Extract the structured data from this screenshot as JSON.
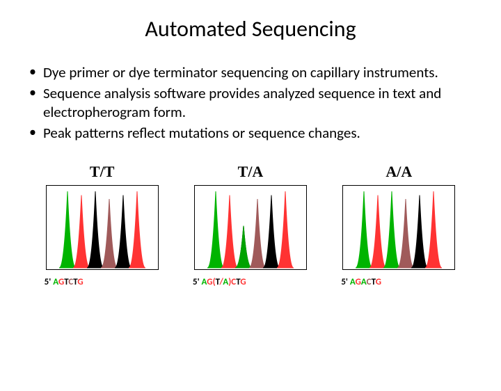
{
  "title": "Automated Sequencing",
  "bullets": [
    "Dye primer or dye terminator sequencing on capillary instruments.",
    "Sequence analysis software provides analyzed sequence in text and electropherogram form.",
    "Peak patterns reflect mutations or sequence changes."
  ],
  "colors": {
    "A": "#00b400",
    "G": "#ff3333",
    "T": "#000000",
    "C": "#a05a5a"
  },
  "peak_shape": {
    "width": 24,
    "height": 110,
    "baseline": 118,
    "overlap": 4
  },
  "charts": [
    {
      "label": "T/T",
      "peaks": [
        {
          "base": "A",
          "h": 1.0
        },
        {
          "base": "G",
          "h": 0.95
        },
        {
          "base": "T",
          "h": 1.0
        },
        {
          "base": "C",
          "h": 0.9
        },
        {
          "base": "T",
          "h": 0.95
        },
        {
          "base": "G",
          "h": 1.0
        }
      ],
      "seq_prefix": "5'",
      "seq": [
        {
          "t": " A",
          "c": "#00b400"
        },
        {
          "t": "G",
          "c": "#ff3333"
        },
        {
          "t": "T",
          "c": "#000000"
        },
        {
          "t": "C",
          "c": "#a05a5a"
        },
        {
          "t": "T",
          "c": "#000000"
        },
        {
          "t": "G",
          "c": "#ff3333"
        }
      ]
    },
    {
      "label": "T/A",
      "peaks": [
        {
          "base": "A",
          "h": 1.0
        },
        {
          "base": "G",
          "h": 0.95
        },
        {
          "base": "T",
          "h": 0.55,
          "overlay": {
            "base": "A",
            "h": 0.55
          }
        },
        {
          "base": "C",
          "h": 0.9
        },
        {
          "base": "T",
          "h": 0.95
        },
        {
          "base": "G",
          "h": 1.0
        }
      ],
      "seq_prefix": "5'",
      "seq": [
        {
          "t": " A",
          "c": "#00b400"
        },
        {
          "t": "G(",
          "c": "#ff3333"
        },
        {
          "t": "T",
          "c": "#000000"
        },
        {
          "t": "/",
          "c": "#ff3333"
        },
        {
          "t": "A",
          "c": "#00b400"
        },
        {
          "t": ")C",
          "c": "#ff3333"
        },
        {
          "t": "T",
          "c": "#000000"
        },
        {
          "t": "G",
          "c": "#ff3333"
        }
      ]
    },
    {
      "label": "A/A",
      "peaks": [
        {
          "base": "A",
          "h": 1.0
        },
        {
          "base": "G",
          "h": 0.95
        },
        {
          "base": "A",
          "h": 1.0
        },
        {
          "base": "C",
          "h": 0.9
        },
        {
          "base": "T",
          "h": 0.95
        },
        {
          "base": "G",
          "h": 1.0
        }
      ],
      "seq_prefix": "5'",
      "seq": [
        {
          "t": " A",
          "c": "#00b400"
        },
        {
          "t": "G",
          "c": "#ff3333"
        },
        {
          "t": "A",
          "c": "#00b400"
        },
        {
          "t": "C",
          "c": "#a05a5a"
        },
        {
          "t": "T",
          "c": "#000000"
        },
        {
          "t": "G",
          "c": "#ff3333"
        }
      ]
    }
  ]
}
